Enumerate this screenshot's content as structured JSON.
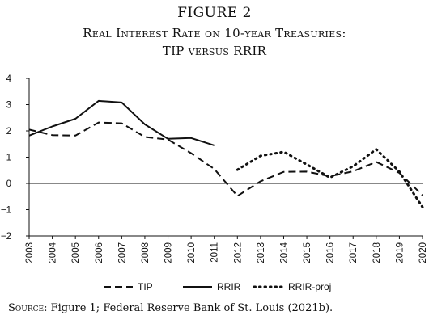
{
  "figure": {
    "label": "FIGURE 2",
    "title_line1": "Real Interest Rate on 10-year Treasuries:",
    "title_line2": "TIP versus RRIR"
  },
  "source": {
    "lead": "Source",
    "text": ": Figure 1; Federal Reserve Bank of St. Louis (2021b)."
  },
  "chart_data": {
    "type": "line",
    "title": "Real Interest Rate on 10-year Treasuries: TIP versus RRIR",
    "xlabel": "",
    "ylabel": "",
    "x": [
      "2003",
      "2004",
      "2005",
      "2006",
      "2007",
      "2008",
      "2009",
      "2010",
      "2011",
      "2012",
      "2013",
      "2014",
      "2015",
      "2016",
      "2017",
      "2018",
      "2019",
      "2020"
    ],
    "ylim": [
      -2,
      4
    ],
    "yticks": [
      "4",
      "3",
      "2",
      "1",
      "0",
      "−1",
      "−2"
    ],
    "yticks_values": [
      4,
      3,
      2,
      1,
      0,
      -1,
      -2
    ],
    "grid": false,
    "legend_position": "bottom",
    "zero_line": true,
    "series": [
      {
        "name": "TIP",
        "style": "dashed",
        "values": [
          2.05,
          1.84,
          1.82,
          2.32,
          2.29,
          1.77,
          1.67,
          1.15,
          0.55,
          -0.48,
          0.08,
          0.44,
          0.45,
          0.27,
          0.46,
          0.82,
          0.4,
          -0.45
        ]
      },
      {
        "name": "RRIR",
        "style": "solid",
        "values": [
          1.82,
          2.17,
          2.46,
          3.14,
          3.08,
          2.25,
          1.7,
          1.73,
          1.45,
          null,
          null,
          null,
          null,
          null,
          null,
          null,
          null,
          null
        ]
      },
      {
        "name": "RRIR-proj",
        "style": "dotted",
        "values": [
          null,
          null,
          null,
          null,
          null,
          null,
          null,
          null,
          null,
          0.52,
          1.05,
          1.2,
          0.72,
          0.22,
          0.65,
          1.3,
          0.45,
          -0.9
        ]
      }
    ]
  }
}
